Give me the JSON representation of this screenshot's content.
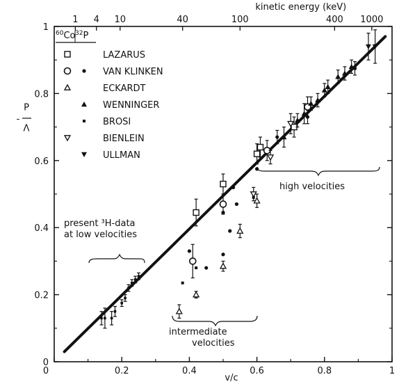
{
  "chart_data": {
    "type": "scatter",
    "title": "",
    "xlabel": "v/c",
    "ylabel_top": "P",
    "ylabel_prefix": "-",
    "ylabel_bottom": "Λ",
    "top_axis_label": "kinetic energy (keV)",
    "xlim": [
      0,
      1
    ],
    "ylim": [
      0,
      1
    ],
    "x_ticks": [
      0,
      0.2,
      0.4,
      0.6,
      0.8,
      1
    ],
    "x_tick_labels": [
      "0",
      "0.2",
      "0.4",
      "0.6",
      "0.8",
      "1"
    ],
    "y_ticks": [
      0,
      0.2,
      0.4,
      0.6,
      0.8,
      1
    ],
    "y_tick_labels": [
      "0",
      "0.2",
      "0.4",
      "0.6",
      "0.8",
      "1"
    ],
    "top_ticks": [
      {
        "x": 0.0625,
        "label": "1"
      },
      {
        "x": 0.125,
        "label": "4"
      },
      {
        "x": 0.195,
        "label": "10"
      },
      {
        "x": 0.38,
        "label": "40"
      },
      {
        "x": 0.55,
        "label": "100"
      },
      {
        "x": 0.83,
        "label": "400"
      },
      {
        "x": 0.94,
        "label": "1000"
      }
    ],
    "legend_header": {
      "co": "60Co",
      "p": "32P"
    },
    "legend": [
      {
        "name": "LAZARUS",
        "marker": "open-square",
        "col": "co"
      },
      {
        "name": "VAN KLINKEN",
        "marker": "open-circle",
        "marker2": "filled-circle",
        "col": "both"
      },
      {
        "name": "ECKARDT",
        "marker": "open-triangle",
        "col": "co"
      },
      {
        "name": "WENNINGER",
        "marker": "filled-triangle",
        "col": "p"
      },
      {
        "name": "BROSI",
        "marker": "filled-square",
        "col": "p"
      },
      {
        "name": "BIENLEIN",
        "marker": "open-triangle-down",
        "col": "co"
      },
      {
        "name": "ULLMAN",
        "marker": "filled-triangle-down",
        "col": "p"
      }
    ],
    "line": {
      "x": [
        0.03,
        0.98
      ],
      "y": [
        0.03,
        0.97
      ]
    },
    "annotations": {
      "low": [
        "present ³H-data",
        "at low velocities"
      ],
      "intermediate": [
        "intermediate",
        "velocities"
      ],
      "high": "high velocities"
    },
    "series": [
      {
        "name": "³H",
        "marker": "small-filled",
        "points": [
          {
            "x": 0.14,
            "y": 0.13,
            "e": 0.02
          },
          {
            "x": 0.15,
            "y": 0.13,
            "e": 0.03
          },
          {
            "x": 0.17,
            "y": 0.13,
            "e": 0.02
          },
          {
            "x": 0.18,
            "y": 0.15,
            "e": 0.015
          },
          {
            "x": 0.2,
            "y": 0.175,
            "e": 0.01
          },
          {
            "x": 0.21,
            "y": 0.19,
            "e": 0.01
          },
          {
            "x": 0.22,
            "y": 0.22,
            "e": 0.01
          },
          {
            "x": 0.23,
            "y": 0.235,
            "e": 0.01
          },
          {
            "x": 0.24,
            "y": 0.245,
            "e": 0.01
          },
          {
            "x": 0.25,
            "y": 0.255,
            "e": 0.01
          }
        ]
      },
      {
        "name": "LAZARUS",
        "marker": "open-square",
        "points": [
          {
            "x": 0.42,
            "y": 0.445,
            "e": 0.04
          },
          {
            "x": 0.5,
            "y": 0.53,
            "e": 0.03
          },
          {
            "x": 0.6,
            "y": 0.62,
            "e": 0.03
          },
          {
            "x": 0.61,
            "y": 0.64,
            "e": 0.03
          },
          {
            "x": 0.71,
            "y": 0.7,
            "e": 0.03
          }
        ]
      },
      {
        "name": "VAN KLINKEN",
        "marker": "open-circle",
        "points": [
          {
            "x": 0.41,
            "y": 0.3,
            "e": 0.05
          },
          {
            "x": 0.5,
            "y": 0.47,
            "e": 0.03
          },
          {
            "x": 0.63,
            "y": 0.63,
            "e": 0.03
          },
          {
            "x": 0.75,
            "y": 0.76,
            "e": 0.03
          }
        ]
      },
      {
        "name": "VAN KLINKEN ³²P",
        "marker": "filled-circle",
        "points": [
          {
            "x": 0.4,
            "y": 0.33
          },
          {
            "x": 0.45,
            "y": 0.28
          },
          {
            "x": 0.5,
            "y": 0.32
          },
          {
            "x": 0.5,
            "y": 0.445
          },
          {
            "x": 0.52,
            "y": 0.39
          },
          {
            "x": 0.53,
            "y": 0.52
          },
          {
            "x": 0.54,
            "y": 0.47
          },
          {
            "x": 0.6,
            "y": 0.575
          },
          {
            "x": 0.66,
            "y": 0.67,
            "e": 0.02
          },
          {
            "x": 0.75,
            "y": 0.73,
            "e": 0.02
          },
          {
            "x": 0.89,
            "y": 0.875,
            "e": 0.02
          }
        ]
      },
      {
        "name": "ECKARDT",
        "marker": "open-triangle",
        "points": [
          {
            "x": 0.37,
            "y": 0.15,
            "e": 0.02
          },
          {
            "x": 0.42,
            "y": 0.2,
            "e": 0.01
          },
          {
            "x": 0.5,
            "y": 0.285,
            "e": 0.015
          },
          {
            "x": 0.55,
            "y": 0.39,
            "e": 0.02
          },
          {
            "x": 0.6,
            "y": 0.48,
            "e": 0.02
          }
        ]
      },
      {
        "name": "WENNINGER",
        "marker": "filled-triangle",
        "points": [
          {
            "x": 0.68,
            "y": 0.67,
            "e": 0.03
          },
          {
            "x": 0.72,
            "y": 0.72,
            "e": 0.02
          },
          {
            "x": 0.74,
            "y": 0.74,
            "e": 0.03
          },
          {
            "x": 0.76,
            "y": 0.77,
            "e": 0.02
          },
          {
            "x": 0.78,
            "y": 0.78,
            "e": 0.02
          },
          {
            "x": 0.8,
            "y": 0.81,
            "e": 0.02
          },
          {
            "x": 0.81,
            "y": 0.82,
            "e": 0.02
          },
          {
            "x": 0.84,
            "y": 0.85,
            "e": 0.02
          },
          {
            "x": 0.86,
            "y": 0.86,
            "e": 0.02
          },
          {
            "x": 0.88,
            "y": 0.88,
            "e": 0.02
          }
        ]
      },
      {
        "name": "BROSI",
        "marker": "filled-square",
        "points": [
          {
            "x": 0.38,
            "y": 0.235
          },
          {
            "x": 0.42,
            "y": 0.28
          },
          {
            "x": 0.59,
            "y": 0.49
          }
        ]
      },
      {
        "name": "BIENLEIN",
        "marker": "open-triangle-down",
        "points": [
          {
            "x": 0.59,
            "y": 0.5,
            "e": 0.02
          },
          {
            "x": 0.64,
            "y": 0.61,
            "e": 0.02
          },
          {
            "x": 0.7,
            "y": 0.71,
            "e": 0.03
          }
        ]
      },
      {
        "name": "ULLMAN",
        "marker": "filled-triangle-down",
        "points": [
          {
            "x": 0.93,
            "y": 0.94,
            "e": 0.04
          },
          {
            "x": 0.95,
            "y": 0.94,
            "e": 0.05
          }
        ]
      }
    ]
  }
}
